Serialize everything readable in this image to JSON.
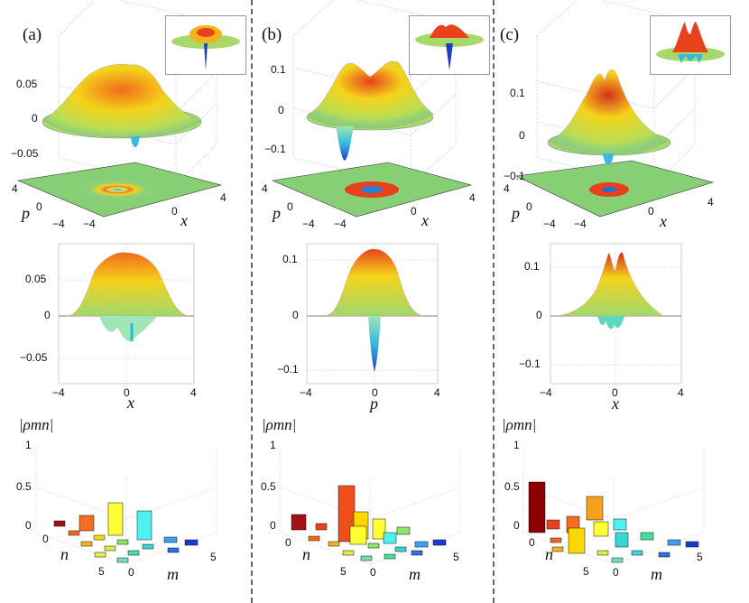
{
  "figure": {
    "panels": [
      {
        "label": "(a)",
        "top_axis_ticks": [
          "0.05",
          "0",
          "−0.05"
        ],
        "plane_ticks": {
          "p_hi": "4",
          "p_mid": "0",
          "p_lo": "−4",
          "x_lo": "−4",
          "x_mid": "0",
          "x_hi": "4"
        },
        "plane_labels": {
          "left": "p",
          "right": "x"
        },
        "side_y_ticks": [
          "0.05",
          "0",
          "−0.05"
        ],
        "side_x_ticks": [
          "−4",
          "0",
          "4"
        ],
        "side_xlabel": "x",
        "rho_label": "|ρmn|",
        "bar_z_ticks": [
          "1",
          "0.5",
          "0"
        ],
        "bar_n_ticks": [
          "0",
          "5"
        ],
        "bar_m_ticks": [
          "0",
          "5"
        ],
        "bar_labels": {
          "n": "n",
          "m": "m"
        },
        "icon": "wigner-surface-inset"
      },
      {
        "label": "(b)",
        "top_axis_ticks": [
          "0.1",
          "0",
          "−0.1"
        ],
        "plane_ticks": {
          "p_hi": "4",
          "p_mid": "0",
          "p_lo": "−4",
          "x_lo": "−4",
          "x_mid": "0",
          "x_hi": "4"
        },
        "plane_labels": {
          "left": "p",
          "right": "x"
        },
        "side_y_ticks": [
          "0.1",
          "0",
          "−0.1"
        ],
        "side_x_ticks": [
          "−4",
          "0",
          "4"
        ],
        "side_xlabel": "p",
        "rho_label": "|ρmn|",
        "bar_z_ticks": [
          "1",
          "0.5",
          "0"
        ],
        "bar_n_ticks": [
          "0",
          "5"
        ],
        "bar_m_ticks": [
          "0",
          "5"
        ],
        "bar_labels": {
          "n": "n",
          "m": "m"
        },
        "icon": "wigner-surface-inset"
      },
      {
        "label": "(c)",
        "top_axis_ticks": [
          "0.1",
          "0",
          "−0.1"
        ],
        "plane_ticks": {
          "p_hi": "4",
          "p_mid": "0",
          "p_lo": "−4",
          "x_lo": "−4",
          "x_mid": "0",
          "x_hi": "4"
        },
        "plane_labels": {
          "left": "p",
          "right": "x"
        },
        "side_y_ticks": [
          "0.1",
          "0",
          "−0.1"
        ],
        "side_x_ticks": [
          "−4",
          "0",
          "4"
        ],
        "side_xlabel": "x",
        "rho_label": "|ρmn|",
        "bar_z_ticks": [
          "1",
          "0.5",
          "0"
        ],
        "bar_n_ticks": [
          "0",
          "5"
        ],
        "bar_m_ticks": [
          "0",
          "5"
        ],
        "bar_labels": {
          "n": "n",
          "m": "m"
        },
        "icon": "wigner-surface-inset"
      }
    ]
  }
}
